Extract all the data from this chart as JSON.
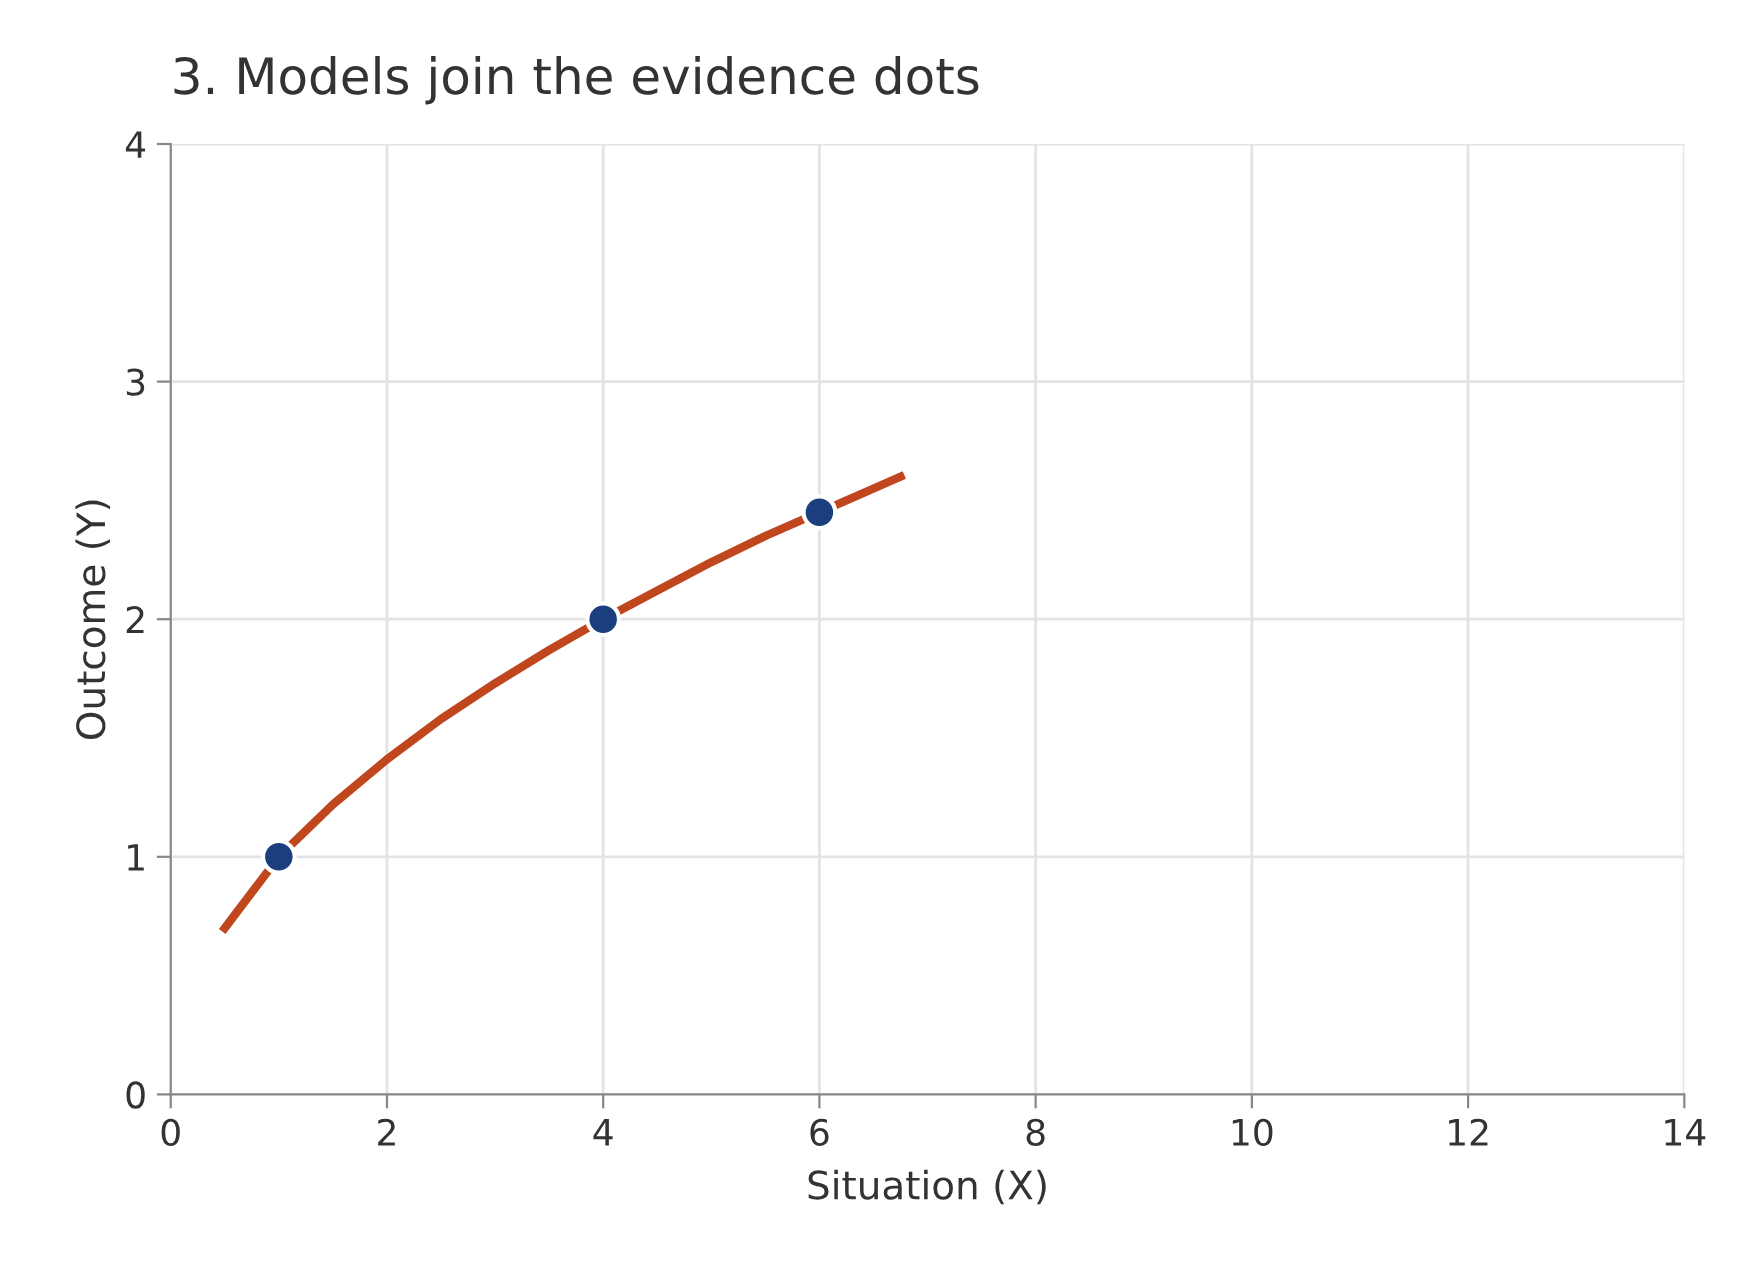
{
  "chart_data": {
    "type": "line",
    "title": "3. Models join the evidence dots",
    "xlabel": "Situation (X)",
    "ylabel": "Outcome (Y)",
    "series": [
      {
        "color": "#c0461e",
        "marker": "none",
        "x": [
          0.5,
          1,
          1.5,
          2,
          2.5,
          3,
          3.5,
          4,
          4.5,
          5,
          5.5,
          6,
          6.75
        ],
        "values": [
          0.7,
          1,
          1.22,
          1.41,
          1.58,
          1.73,
          1.87,
          2,
          2.12,
          2.24,
          2.35,
          2.45,
          2.6
        ]
      },
      {
        "type": "scatter",
        "color": "#1b3f7e",
        "marker": "circle",
        "x": [
          1,
          4,
          6
        ],
        "values": [
          1,
          2,
          2.45
        ]
      }
    ],
    "xlim": [
      0,
      14
    ],
    "xticks": [
      0,
      2,
      4,
      6,
      8,
      10,
      12,
      14
    ],
    "ylim": [
      0,
      4
    ],
    "yticks": [
      0,
      1,
      2,
      3,
      4
    ],
    "grid": true
  }
}
